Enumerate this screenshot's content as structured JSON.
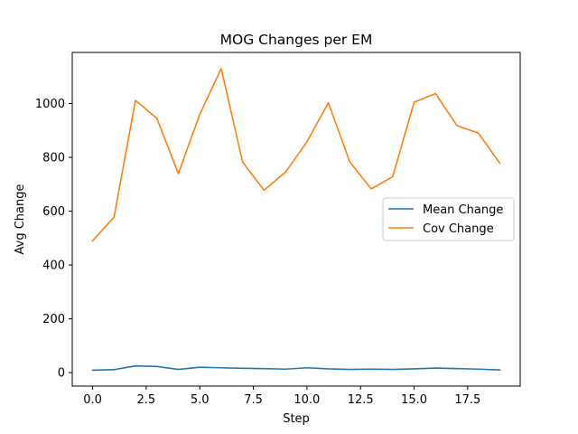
{
  "chart_data": {
    "type": "line",
    "title": "MOG Changes per EM",
    "xlabel": "Step",
    "ylabel": "Avg Change",
    "x": [
      0,
      1,
      2,
      3,
      4,
      5,
      6,
      7,
      8,
      9,
      10,
      11,
      12,
      13,
      14,
      15,
      16,
      17,
      18,
      19
    ],
    "xlim": [
      -0.95,
      19.95
    ],
    "ylim": [
      -50,
      1190
    ],
    "xticks": [
      0.0,
      2.5,
      5.0,
      7.5,
      10.0,
      12.5,
      15.0,
      17.5
    ],
    "xtick_labels": [
      "0.0",
      "2.5",
      "5.0",
      "7.5",
      "10.0",
      "12.5",
      "15.0",
      "17.5"
    ],
    "yticks": [
      0,
      200,
      400,
      600,
      800,
      1000
    ],
    "ytick_labels": [
      "0",
      "200",
      "400",
      "600",
      "800",
      "1000"
    ],
    "grid": false,
    "legend_position": "center-right",
    "series": [
      {
        "name": "Mean Change",
        "color": "#1f77b4",
        "values": [
          9,
          11,
          25,
          23,
          12,
          20,
          18,
          16,
          15,
          13,
          18,
          14,
          12,
          13,
          12,
          14,
          17,
          15,
          13,
          10
        ]
      },
      {
        "name": "Cov Change",
        "color": "#ff7f0e",
        "values": [
          490,
          578,
          1012,
          945,
          740,
          960,
          1130,
          782,
          678,
          745,
          858,
          1003,
          783,
          683,
          728,
          1005,
          1037,
          918,
          890,
          778
        ]
      }
    ]
  }
}
